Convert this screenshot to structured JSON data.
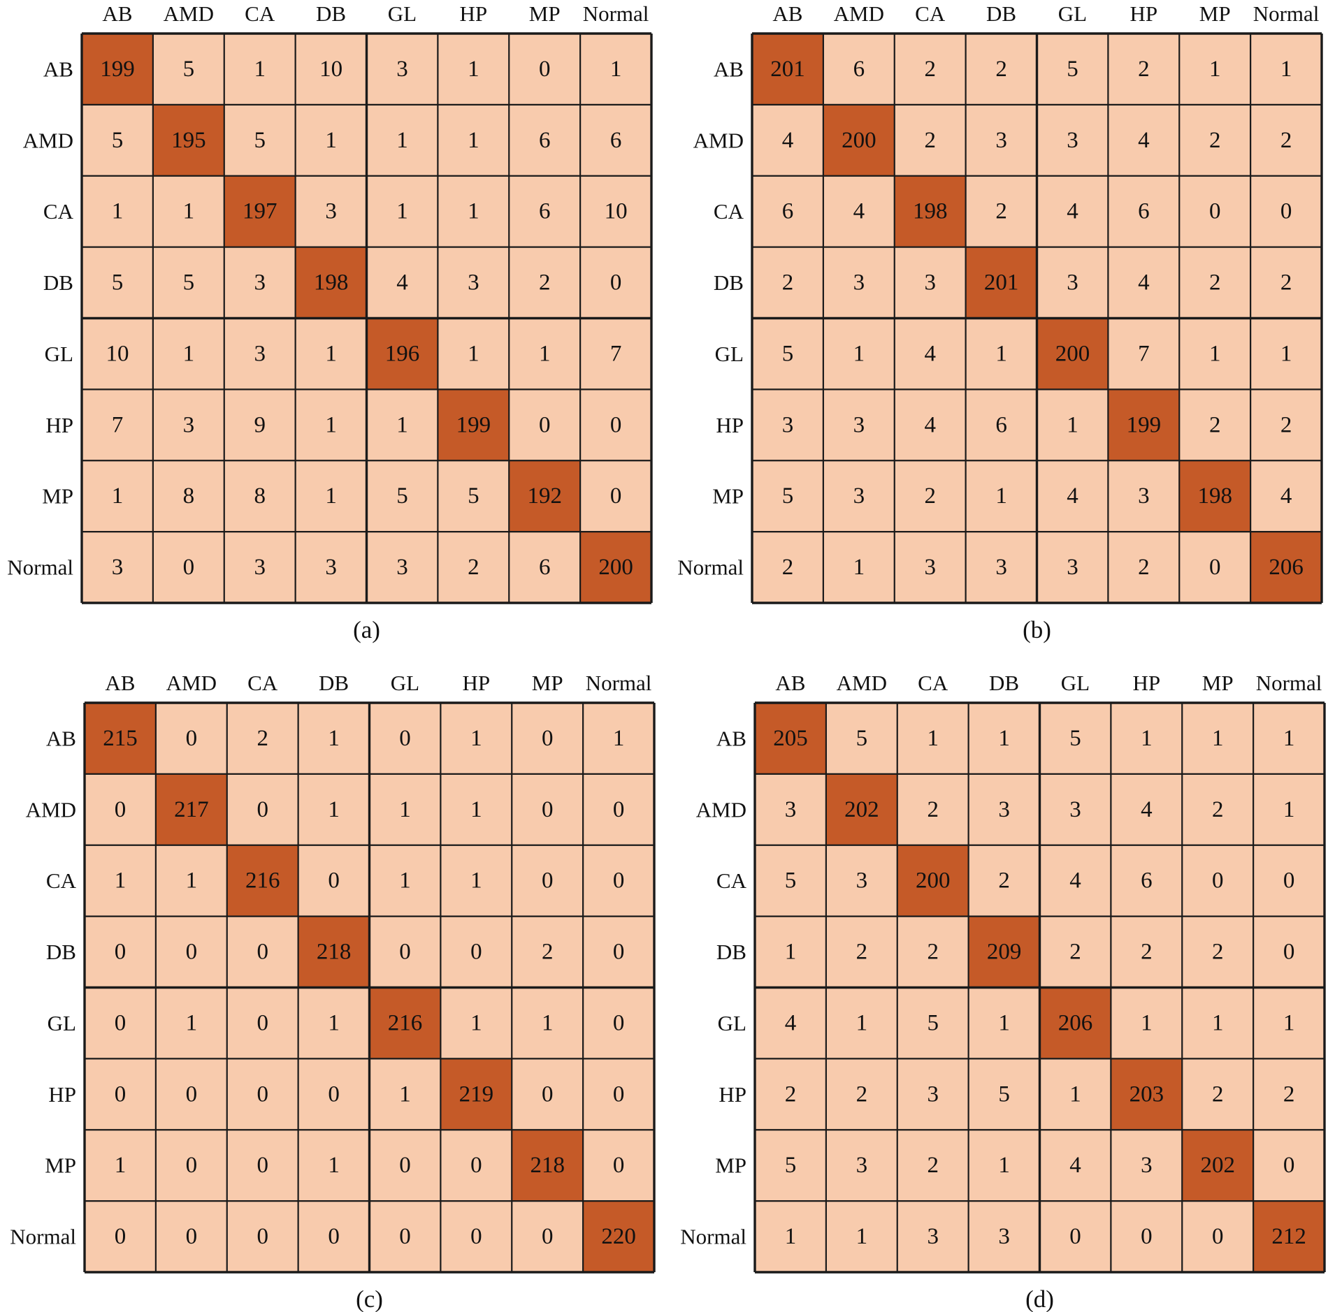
{
  "chart_data": [
    {
      "type": "heatmap",
      "title": "",
      "caption": "(a)",
      "xlabel": "",
      "ylabel": "",
      "col_labels": [
        "AB",
        "AMD",
        "CA",
        "DB",
        "GL",
        "HP",
        "MP",
        "Normal"
      ],
      "row_labels": [
        "AB",
        "AMD",
        "CA",
        "DB",
        "GL",
        "HP",
        "MP",
        "Normal"
      ],
      "values": [
        [
          199,
          5,
          1,
          10,
          3,
          1,
          0,
          1
        ],
        [
          5,
          195,
          5,
          1,
          1,
          1,
          6,
          6
        ],
        [
          1,
          1,
          197,
          3,
          1,
          1,
          6,
          10
        ],
        [
          5,
          5,
          3,
          198,
          4,
          3,
          2,
          0
        ],
        [
          10,
          1,
          3,
          1,
          196,
          1,
          1,
          7
        ],
        [
          7,
          3,
          9,
          1,
          1,
          199,
          0,
          0
        ],
        [
          1,
          8,
          8,
          1,
          5,
          5,
          192,
          0
        ],
        [
          3,
          0,
          3,
          3,
          3,
          2,
          6,
          200
        ]
      ]
    },
    {
      "type": "heatmap",
      "title": "",
      "caption": "(b)",
      "xlabel": "",
      "ylabel": "",
      "col_labels": [
        "AB",
        "AMD",
        "CA",
        "DB",
        "GL",
        "HP",
        "MP",
        "Normal"
      ],
      "row_labels": [
        "AB",
        "AMD",
        "CA",
        "DB",
        "GL",
        "HP",
        "MP",
        "Normal"
      ],
      "values": [
        [
          201,
          6,
          2,
          2,
          5,
          2,
          1,
          1
        ],
        [
          4,
          200,
          2,
          3,
          3,
          4,
          2,
          2
        ],
        [
          6,
          4,
          198,
          2,
          4,
          6,
          0,
          0
        ],
        [
          2,
          3,
          3,
          201,
          3,
          4,
          2,
          2
        ],
        [
          5,
          1,
          4,
          1,
          200,
          7,
          1,
          1
        ],
        [
          3,
          3,
          4,
          6,
          1,
          199,
          2,
          2
        ],
        [
          5,
          3,
          2,
          1,
          4,
          3,
          198,
          4
        ],
        [
          2,
          1,
          3,
          3,
          3,
          2,
          0,
          206
        ]
      ]
    },
    {
      "type": "heatmap",
      "title": "",
      "caption": "(c)",
      "xlabel": "",
      "ylabel": "",
      "col_labels": [
        "AB",
        "AMD",
        "CA",
        "DB",
        "GL",
        "HP",
        "MP",
        "Normal"
      ],
      "row_labels": [
        "AB",
        "AMD",
        "CA",
        "DB",
        "GL",
        "HP",
        "MP",
        "Normal"
      ],
      "values": [
        [
          215,
          0,
          2,
          1,
          0,
          1,
          0,
          1
        ],
        [
          0,
          217,
          0,
          1,
          1,
          1,
          0,
          0
        ],
        [
          1,
          1,
          216,
          0,
          1,
          1,
          0,
          0
        ],
        [
          0,
          0,
          0,
          218,
          0,
          0,
          2,
          0
        ],
        [
          0,
          1,
          0,
          1,
          216,
          1,
          1,
          0
        ],
        [
          0,
          0,
          0,
          0,
          1,
          219,
          0,
          0
        ],
        [
          1,
          0,
          0,
          1,
          0,
          0,
          218,
          0
        ],
        [
          0,
          0,
          0,
          0,
          0,
          0,
          0,
          220
        ]
      ]
    },
    {
      "type": "heatmap",
      "title": "",
      "caption": "(d)",
      "xlabel": "",
      "ylabel": "",
      "col_labels": [
        "AB",
        "AMD",
        "CA",
        "DB",
        "GL",
        "HP",
        "MP",
        "Normal"
      ],
      "row_labels": [
        "AB",
        "AMD",
        "CA",
        "DB",
        "GL",
        "HP",
        "MP",
        "Normal"
      ],
      "values": [
        [
          205,
          5,
          1,
          1,
          5,
          1,
          1,
          1
        ],
        [
          3,
          202,
          2,
          3,
          3,
          4,
          2,
          1
        ],
        [
          5,
          3,
          200,
          2,
          4,
          6,
          0,
          0
        ],
        [
          1,
          2,
          2,
          209,
          2,
          2,
          2,
          0
        ],
        [
          4,
          1,
          5,
          1,
          206,
          1,
          1,
          1
        ],
        [
          2,
          2,
          3,
          5,
          1,
          203,
          2,
          2
        ],
        [
          5,
          3,
          2,
          1,
          4,
          3,
          202,
          0
        ],
        [
          1,
          1,
          3,
          3,
          0,
          0,
          0,
          212
        ]
      ]
    }
  ],
  "colors": {
    "diagonal": "#c55a28",
    "off_diagonal": "#f8cbad",
    "grid": "#1a1a1a",
    "text": "#111111"
  }
}
